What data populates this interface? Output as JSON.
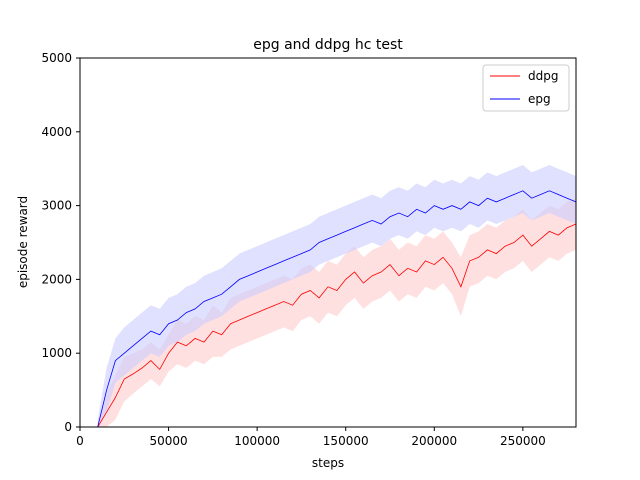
{
  "chart_data": {
    "type": "line",
    "title": "epg and ddpg hc test",
    "xlabel": "steps",
    "ylabel": "episode reward",
    "xlim": [
      0,
      280000
    ],
    "ylim": [
      0,
      5000
    ],
    "grid": false,
    "legend_position": "top-right",
    "x_ticks": [
      0,
      50000,
      100000,
      150000,
      200000,
      250000
    ],
    "x_tick_labels": [
      "0",
      "50000",
      "100000",
      "150000",
      "200000",
      "250000"
    ],
    "y_ticks": [
      0,
      1000,
      2000,
      3000,
      4000,
      5000
    ],
    "y_tick_labels": [
      "0",
      "1000",
      "2000",
      "3000",
      "4000",
      "5000"
    ],
    "x": [
      10000,
      15000,
      20000,
      25000,
      30000,
      35000,
      40000,
      45000,
      50000,
      55000,
      60000,
      65000,
      70000,
      75000,
      80000,
      85000,
      90000,
      95000,
      100000,
      105000,
      110000,
      115000,
      120000,
      125000,
      130000,
      135000,
      140000,
      145000,
      150000,
      155000,
      160000,
      165000,
      170000,
      175000,
      180000,
      185000,
      190000,
      195000,
      200000,
      205000,
      210000,
      215000,
      220000,
      225000,
      230000,
      235000,
      240000,
      245000,
      250000,
      255000,
      260000,
      265000,
      270000,
      275000,
      280000
    ],
    "series": [
      {
        "name": "ddpg",
        "color": "#ff0000",
        "band_color": "#ffcccc",
        "values": [
          0,
          200,
          400,
          650,
          720,
          800,
          900,
          780,
          1000,
          1150,
          1100,
          1200,
          1150,
          1300,
          1250,
          1400,
          1450,
          1500,
          1550,
          1600,
          1650,
          1700,
          1650,
          1800,
          1850,
          1750,
          1900,
          1850,
          2000,
          2100,
          1950,
          2050,
          2100,
          2200,
          2050,
          2150,
          2100,
          2250,
          2200,
          2300,
          2150,
          1900,
          2250,
          2300,
          2400,
          2350,
          2450,
          2500,
          2600,
          2450,
          2550,
          2650,
          2600,
          2700,
          2750
        ],
        "lower": [
          0,
          0,
          100,
          350,
          450,
          550,
          650,
          550,
          750,
          850,
          800,
          900,
          850,
          950,
          950,
          1050,
          1100,
          1150,
          1200,
          1250,
          1300,
          1350,
          1300,
          1450,
          1500,
          1400,
          1550,
          1500,
          1650,
          1750,
          1600,
          1700,
          1750,
          1850,
          1700,
          1800,
          1750,
          1900,
          1850,
          1950,
          1800,
          1500,
          1900,
          1950,
          2050,
          2000,
          2100,
          2150,
          2250,
          2100,
          2200,
          2300,
          2250,
          2350,
          2400
        ],
        "upper": [
          50,
          450,
          700,
          950,
          1000,
          1050,
          1150,
          1050,
          1250,
          1450,
          1400,
          1500,
          1450,
          1650,
          1550,
          1750,
          1800,
          1850,
          1900,
          1950,
          2000,
          2050,
          2000,
          2150,
          2200,
          2100,
          2250,
          2200,
          2350,
          2450,
          2300,
          2400,
          2450,
          2550,
          2400,
          2500,
          2450,
          2600,
          2550,
          2650,
          2500,
          2300,
          2600,
          2650,
          2750,
          2700,
          2800,
          2850,
          2950,
          2800,
          2900,
          3000,
          2950,
          3050,
          3100
        ]
      },
      {
        "name": "epg",
        "color": "#0000ff",
        "band_color": "#ccccff",
        "values": [
          0,
          500,
          900,
          1000,
          1100,
          1200,
          1300,
          1250,
          1400,
          1450,
          1550,
          1600,
          1700,
          1750,
          1800,
          1900,
          2000,
          2050,
          2100,
          2150,
          2200,
          2250,
          2300,
          2350,
          2400,
          2500,
          2550,
          2600,
          2650,
          2700,
          2750,
          2800,
          2750,
          2850,
          2900,
          2850,
          2950,
          2900,
          3000,
          2950,
          3000,
          2950,
          3050,
          3000,
          3100,
          3050,
          3100,
          3150,
          3200,
          3100,
          3150,
          3200,
          3150,
          3100,
          3050
        ],
        "lower": [
          0,
          200,
          600,
          700,
          800,
          900,
          1000,
          950,
          1100,
          1150,
          1250,
          1300,
          1400,
          1450,
          1500,
          1600,
          1700,
          1750,
          1800,
          1850,
          1900,
          1950,
          2000,
          2050,
          2100,
          2200,
          2250,
          2300,
          2350,
          2400,
          2450,
          2500,
          2450,
          2550,
          2600,
          2550,
          2650,
          2600,
          2700,
          2650,
          2700,
          2650,
          2750,
          2700,
          2800,
          2750,
          2800,
          2850,
          2900,
          2800,
          2850,
          2900,
          2850,
          2800,
          2750
        ],
        "upper": [
          100,
          800,
          1200,
          1350,
          1450,
          1550,
          1650,
          1600,
          1750,
          1800,
          1900,
          1950,
          2050,
          2100,
          2150,
          2250,
          2350,
          2400,
          2450,
          2500,
          2550,
          2600,
          2650,
          2700,
          2750,
          2850,
          2900,
          2950,
          3000,
          3050,
          3100,
          3150,
          3100,
          3200,
          3250,
          3200,
          3300,
          3250,
          3350,
          3300,
          3350,
          3300,
          3400,
          3350,
          3450,
          3400,
          3450,
          3500,
          3550,
          3450,
          3500,
          3550,
          3500,
          3450,
          3400
        ]
      }
    ]
  }
}
